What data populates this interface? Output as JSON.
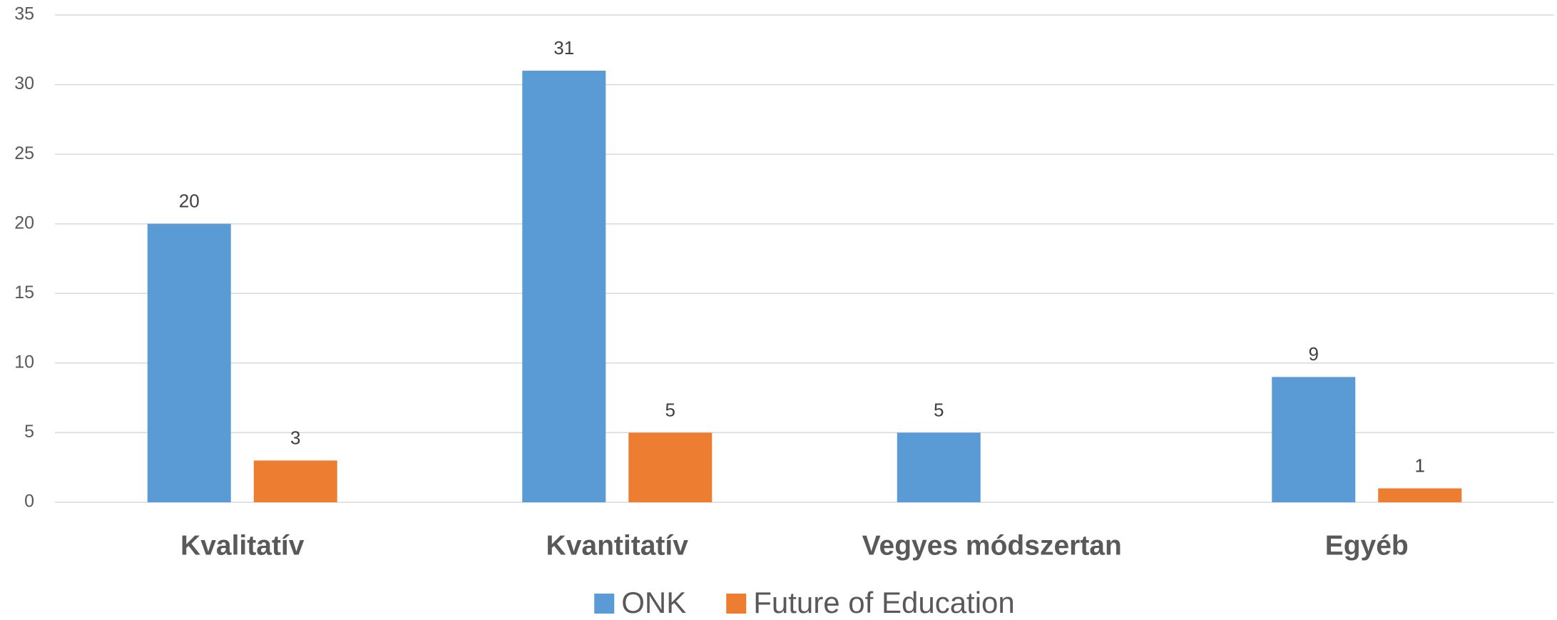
{
  "chart_data": {
    "type": "bar",
    "categories": [
      "Kvalitatív",
      "Kvantitatív",
      "Vegyes módszertan",
      "Egyéb"
    ],
    "series": [
      {
        "name": "ONK",
        "color": "#5b9bd5",
        "values": [
          20,
          31,
          5,
          9
        ]
      },
      {
        "name": "Future of Education",
        "color": "#ed7d31",
        "values": [
          3,
          5,
          null,
          1
        ]
      }
    ],
    "ylim": [
      0,
      35
    ],
    "yticks": [
      0,
      5,
      10,
      15,
      20,
      25,
      30,
      35
    ],
    "grid": true,
    "legend": "bottom"
  }
}
